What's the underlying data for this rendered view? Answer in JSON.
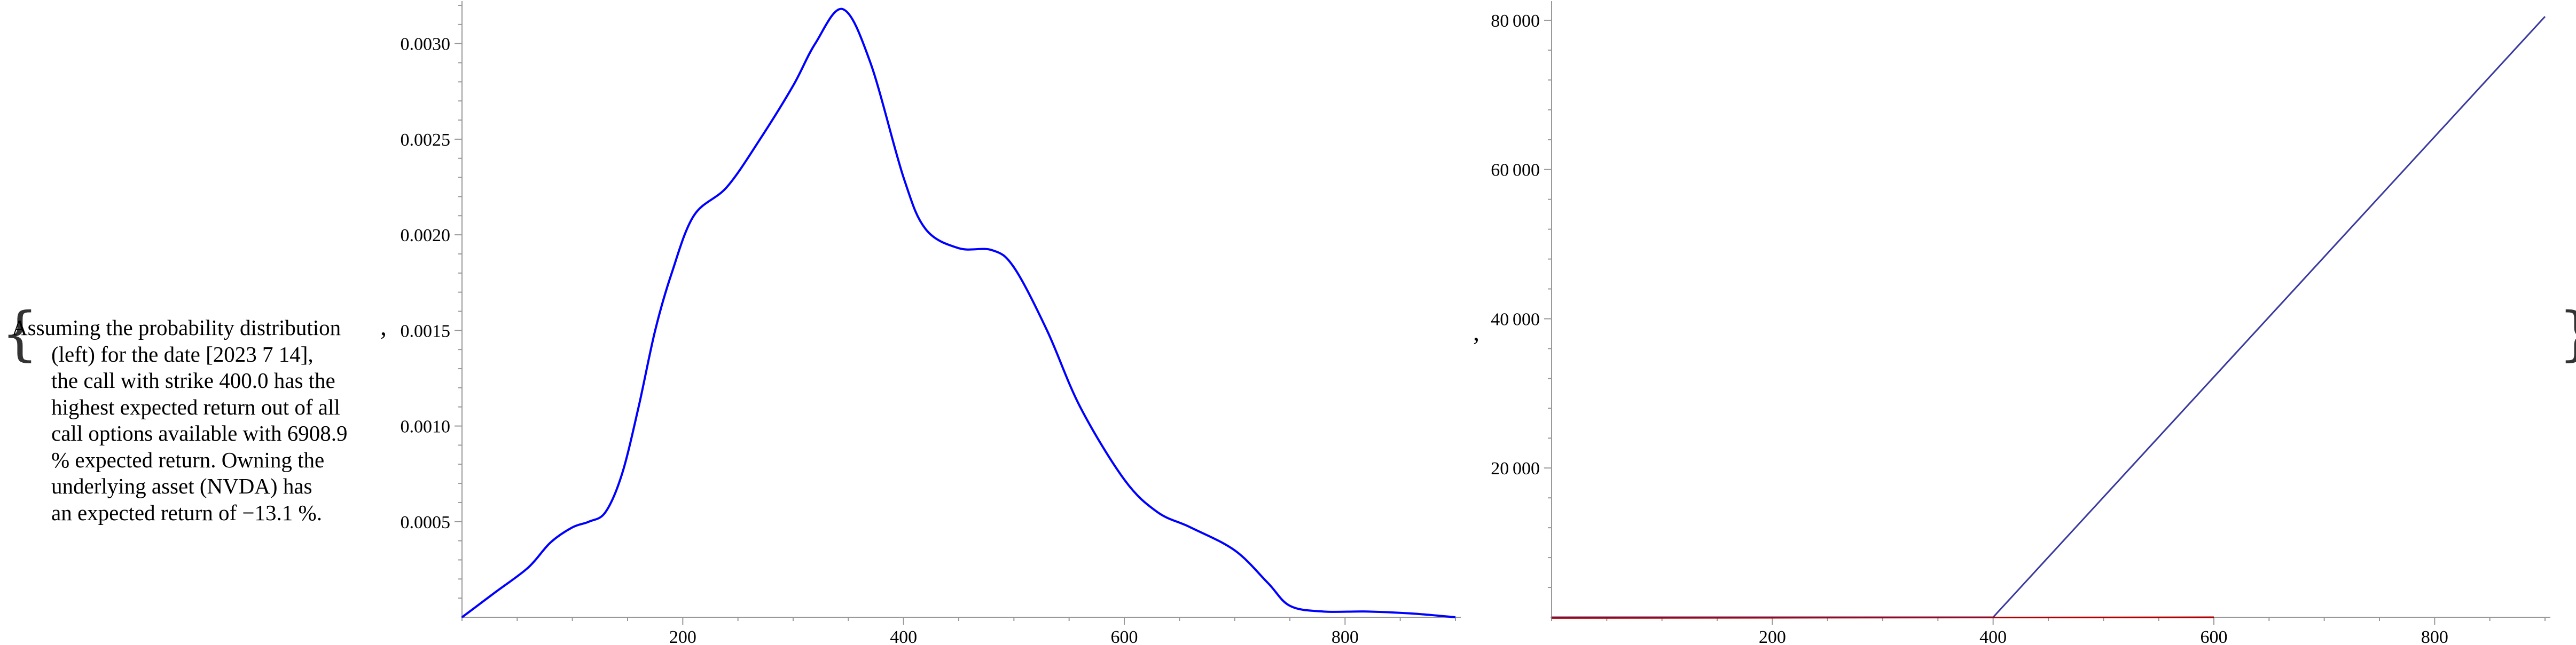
{
  "brackets": {
    "open": "{",
    "close": "}",
    "sep1": ",",
    "sep2": ","
  },
  "description": {
    "lines": [
      "Assuming the probability distribution",
      "(left) for the date [2023 7 14],",
      "the call with strike 400.0 has the",
      "highest expected return out of all",
      "call options available with 6908.9",
      "% expected return. Owning the",
      "underlying asset (NVDA) has",
      "an expected return of −13.1 %."
    ]
  },
  "chart_data": [
    {
      "type": "line",
      "title": "",
      "xlabel": "",
      "ylabel": "",
      "xlim": [
        0,
        900
      ],
      "ylim": [
        0,
        0.0032
      ],
      "x_ticks": [
        200,
        400,
        600,
        800
      ],
      "x_tick_labels": [
        "200",
        "400",
        "600",
        "800"
      ],
      "y_ticks": [
        0.0005,
        0.001,
        0.0015,
        0.002,
        0.0025,
        0.003
      ],
      "y_tick_labels": [
        "0.0005",
        "0.0010",
        "0.0015",
        "0.0020",
        "0.0025",
        "0.0030"
      ],
      "grid": false,
      "series": [
        {
          "color": "#0000ff",
          "x": [
            0,
            30,
            60,
            80,
            100,
            115,
            130,
            145,
            160,
            175,
            190,
            210,
            240,
            270,
            300,
            320,
            345,
            370,
            400,
            420,
            450,
            480,
            500,
            530,
            560,
            600,
            630,
            660,
            700,
            730,
            750,
            780,
            820,
            860,
            900
          ],
          "y": [
            0,
            0.00013,
            0.00026,
            0.00039,
            0.00047,
            0.0005,
            0.00055,
            0.00075,
            0.0011,
            0.0015,
            0.0018,
            0.0021,
            0.00225,
            0.0025,
            0.00278,
            0.003,
            0.00318,
            0.0029,
            0.0023,
            0.00203,
            0.00193,
            0.00192,
            0.00183,
            0.0015,
            0.0011,
            0.00072,
            0.00055,
            0.00047,
            0.00035,
            0.00018,
            6e-05,
            3e-05,
            3e-05,
            2e-05,
            0
          ]
        }
      ]
    },
    {
      "type": "line",
      "title": "",
      "xlabel": "",
      "ylabel": "",
      "xlim": [
        0,
        900
      ],
      "ylim": [
        0,
        82000
      ],
      "x_ticks": [
        200,
        400,
        600,
        800
      ],
      "x_tick_labels": [
        "200",
        "400",
        "600",
        "800"
      ],
      "y_ticks": [
        20000,
        40000,
        60000,
        80000
      ],
      "y_tick_labels": [
        "20 000",
        "40 000",
        "60 000",
        "80 000"
      ],
      "grid": false,
      "series": [
        {
          "color": "#3a3aa0",
          "x": [
            0,
            400,
            900
          ],
          "y": [
            0,
            0,
            80500
          ]
        },
        {
          "color": "#b00000",
          "x": [
            0,
            600
          ],
          "y": [
            -100,
            0
          ]
        }
      ]
    }
  ]
}
